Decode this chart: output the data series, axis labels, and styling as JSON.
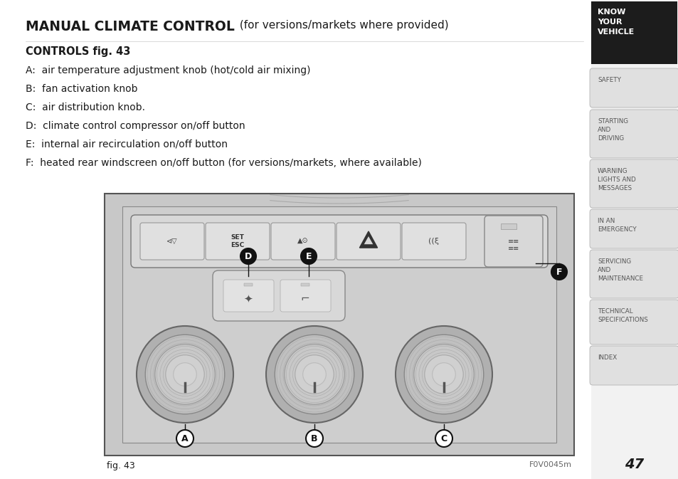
{
  "title_bold": "MANUAL CLIMATE CONTROL",
  "title_regular": " (for versions/markets where provided)",
  "subtitle": "CONTROLS fig. 43",
  "items": [
    "A:  air temperature adjustment knob (hot/cold air mixing)",
    "B:  fan activation knob",
    "C:  air distribution knob.",
    "D:  climate control compressor on/off button",
    "E:  internal air recirculation on/off button",
    "F:  heated rear windscreen on/off button (for versions/markets, where available)"
  ],
  "fig_label": "fig. 43",
  "fig_code": "F0V0045m",
  "page_number": "47",
  "sidebar_items": [
    "KNOW\nYOUR\nVEHICLE",
    "SAFETY",
    "STARTING\nAND\nDRIVING",
    "WARNING\nLIGHTS AND\nMESSAGES",
    "IN AN\nEMERGENCY",
    "SERVICING\nAND\nMAINTENANCE",
    "TECHNICAL\nSPECIFICATIONS",
    "INDEX"
  ],
  "bg_color": "#ffffff",
  "text_color": "#1a1a1a",
  "sidebar_dark_color": "#1c1c1c",
  "sidebar_light_color": "#e0e0e0",
  "diagram_outer_bg": "#c8c8c8",
  "diagram_panel_bg": "#d2d2d2"
}
